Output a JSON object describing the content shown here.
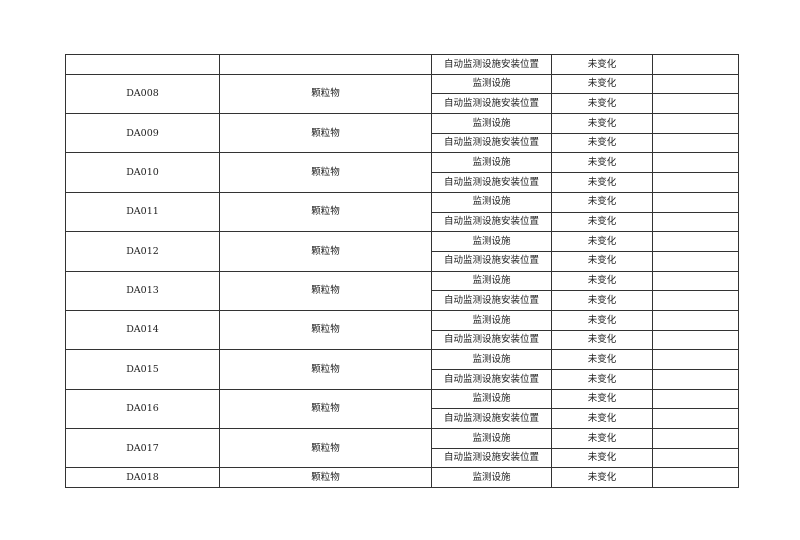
{
  "table": {
    "top_row": {
      "outlet": "",
      "pollutant": "",
      "item": "自动监测设施安装位置",
      "status": "未变化",
      "note": ""
    },
    "groups": [
      {
        "outlet": "DA008",
        "pollutant": "颗粒物",
        "rows": [
          {
            "item": "监测设施",
            "status": "未变化",
            "note": ""
          },
          {
            "item": "自动监测设施安装位置",
            "status": "未变化",
            "note": ""
          }
        ]
      },
      {
        "outlet": "DA009",
        "pollutant": "颗粒物",
        "rows": [
          {
            "item": "监测设施",
            "status": "未变化",
            "note": ""
          },
          {
            "item": "自动监测设施安装位置",
            "status": "未变化",
            "note": ""
          }
        ]
      },
      {
        "outlet": "DA010",
        "pollutant": "颗粒物",
        "rows": [
          {
            "item": "监测设施",
            "status": "未变化",
            "note": ""
          },
          {
            "item": "自动监测设施安装位置",
            "status": "未变化",
            "note": ""
          }
        ]
      },
      {
        "outlet": "DA011",
        "pollutant": "颗粒物",
        "rows": [
          {
            "item": "监测设施",
            "status": "未变化",
            "note": ""
          },
          {
            "item": "自动监测设施安装位置",
            "status": "未变化",
            "note": ""
          }
        ]
      },
      {
        "outlet": "DA012",
        "pollutant": "颗粒物",
        "rows": [
          {
            "item": "监测设施",
            "status": "未变化",
            "note": ""
          },
          {
            "item": "自动监测设施安装位置",
            "status": "未变化",
            "note": ""
          }
        ]
      },
      {
        "outlet": "DA013",
        "pollutant": "颗粒物",
        "rows": [
          {
            "item": "监测设施",
            "status": "未变化",
            "note": ""
          },
          {
            "item": "自动监测设施安装位置",
            "status": "未变化",
            "note": ""
          }
        ]
      },
      {
        "outlet": "DA014",
        "pollutant": "颗粒物",
        "rows": [
          {
            "item": "监测设施",
            "status": "未变化",
            "note": ""
          },
          {
            "item": "自动监测设施安装位置",
            "status": "未变化",
            "note": ""
          }
        ]
      },
      {
        "outlet": "DA015",
        "pollutant": "颗粒物",
        "rows": [
          {
            "item": "监测设施",
            "status": "未变化",
            "note": ""
          },
          {
            "item": "自动监测设施安装位置",
            "status": "未变化",
            "note": ""
          }
        ]
      },
      {
        "outlet": "DA016",
        "pollutant": "颗粒物",
        "rows": [
          {
            "item": "监测设施",
            "status": "未变化",
            "note": ""
          },
          {
            "item": "自动监测设施安装位置",
            "status": "未变化",
            "note": ""
          }
        ]
      },
      {
        "outlet": "DA017",
        "pollutant": "颗粒物",
        "rows": [
          {
            "item": "监测设施",
            "status": "未变化",
            "note": ""
          },
          {
            "item": "自动监测设施安装位置",
            "status": "未变化",
            "note": ""
          }
        ]
      },
      {
        "outlet": "DA018",
        "pollutant": "颗粒物",
        "rows": [
          {
            "item": "监测设施",
            "status": "未变化",
            "note": ""
          }
        ]
      }
    ]
  }
}
